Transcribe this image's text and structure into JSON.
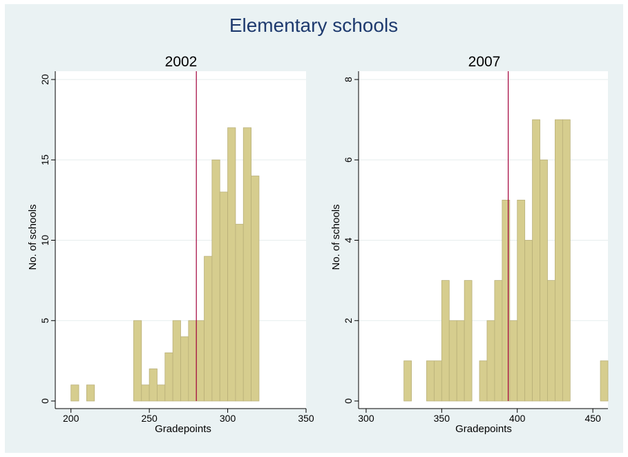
{
  "title": "Elementary schools",
  "colors": {
    "background": "#eaf2f3",
    "plot_area": "#ffffff",
    "bar_fill": "#d6cd8e",
    "bar_edge": "#b9b079",
    "reference_line": "#a3003a",
    "gridline": "#e6eeee",
    "title": "#1e3a6e"
  },
  "chart_data": [
    {
      "type": "bar",
      "subtitle": "2002",
      "xlabel": "Gradepoints",
      "ylabel": "No. of schools",
      "xlim": [
        190,
        350
      ],
      "ylim": [
        0,
        20
      ],
      "xticks": [
        200,
        250,
        300,
        350
      ],
      "yticks": [
        0,
        5,
        10,
        15,
        20
      ],
      "grid": true,
      "bin_width": 5,
      "bins": [
        {
          "start": 200,
          "count": 1
        },
        {
          "start": 210,
          "count": 1
        },
        {
          "start": 240,
          "count": 5
        },
        {
          "start": 245,
          "count": 1
        },
        {
          "start": 250,
          "count": 2
        },
        {
          "start": 255,
          "count": 1
        },
        {
          "start": 260,
          "count": 3
        },
        {
          "start": 265,
          "count": 5
        },
        {
          "start": 270,
          "count": 4
        },
        {
          "start": 275,
          "count": 5
        },
        {
          "start": 280,
          "count": 5
        },
        {
          "start": 285,
          "count": 9
        },
        {
          "start": 290,
          "count": 15
        },
        {
          "start": 295,
          "count": 13
        },
        {
          "start": 300,
          "count": 17
        },
        {
          "start": 305,
          "count": 11
        },
        {
          "start": 310,
          "count": 17
        },
        {
          "start": 315,
          "count": 14
        }
      ],
      "reference_line_x": 280
    },
    {
      "type": "bar",
      "subtitle": "2007",
      "xlabel": "Gradepoints",
      "ylabel": "No. of schools",
      "xlim": [
        295,
        460
      ],
      "ylim": [
        0,
        8
      ],
      "xticks": [
        300,
        350,
        400,
        450
      ],
      "yticks": [
        0,
        2,
        4,
        6,
        8
      ],
      "grid": true,
      "bin_width": 5,
      "bins": [
        {
          "start": 325,
          "count": 1
        },
        {
          "start": 340,
          "count": 1
        },
        {
          "start": 345,
          "count": 1
        },
        {
          "start": 350,
          "count": 3
        },
        {
          "start": 355,
          "count": 2
        },
        {
          "start": 360,
          "count": 2
        },
        {
          "start": 365,
          "count": 3
        },
        {
          "start": 375,
          "count": 1
        },
        {
          "start": 380,
          "count": 2
        },
        {
          "start": 385,
          "count": 3
        },
        {
          "start": 390,
          "count": 5
        },
        {
          "start": 395,
          "count": 2
        },
        {
          "start": 400,
          "count": 5
        },
        {
          "start": 405,
          "count": 4
        },
        {
          "start": 410,
          "count": 7
        },
        {
          "start": 415,
          "count": 6
        },
        {
          "start": 420,
          "count": 3
        },
        {
          "start": 425,
          "count": 7
        },
        {
          "start": 430,
          "count": 7
        },
        {
          "start": 455,
          "count": 1
        }
      ],
      "reference_line_x": 394
    }
  ]
}
